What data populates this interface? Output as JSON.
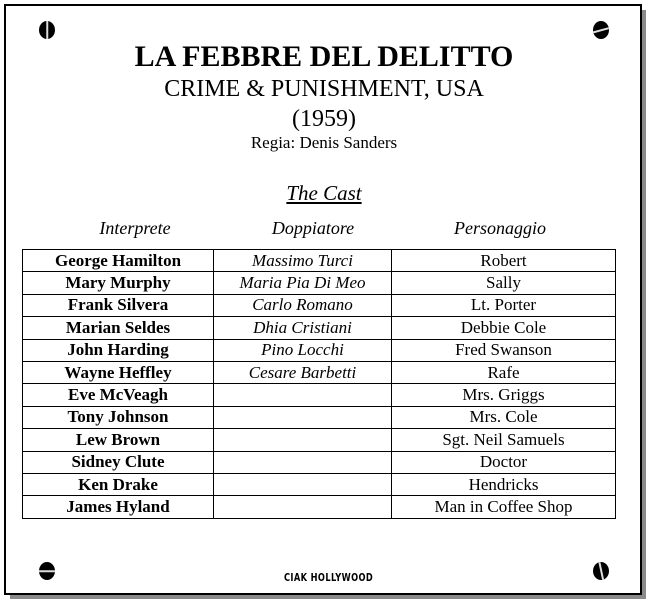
{
  "title": "LA FEBBRE DEL DELITTO",
  "original_title": "CRIME & PUNISHMENT, USA",
  "year": "(1959)",
  "director": "Regia: Denis Sanders",
  "cast_heading": "The Cast",
  "columns": [
    "Interprete",
    "Doppiatore",
    "Personaggio"
  ],
  "rows": [
    {
      "actor": "George Hamilton",
      "dubber": "Massimo Turci",
      "role": "Robert"
    },
    {
      "actor": "Mary Murphy",
      "dubber": "Maria Pia Di Meo",
      "role": "Sally"
    },
    {
      "actor": "Frank Silvera",
      "dubber": "Carlo Romano",
      "role": "Lt. Porter"
    },
    {
      "actor": "Marian Seldes",
      "dubber": "Dhia Cristiani",
      "role": "Debbie Cole"
    },
    {
      "actor": "John Harding",
      "dubber": "Pino Locchi",
      "role": "Fred Swanson"
    },
    {
      "actor": "Wayne Heffley",
      "dubber": "Cesare Barbetti",
      "role": "Rafe"
    },
    {
      "actor": "Eve McVeagh",
      "dubber": "",
      "role": "Mrs. Griggs"
    },
    {
      "actor": "Tony Johnson",
      "dubber": "",
      "role": "Mrs. Cole"
    },
    {
      "actor": "Lew Brown",
      "dubber": "",
      "role": "Sgt. Neil Samuels"
    },
    {
      "actor": "Sidney Clute",
      "dubber": "",
      "role": "Doctor"
    },
    {
      "actor": "Ken Drake",
      "dubber": "",
      "role": "Hendricks"
    },
    {
      "actor": "James Hyland",
      "dubber": "",
      "role": "Man in Coffee Shop"
    }
  ],
  "logo": "CIAK HOLLYWOOD"
}
